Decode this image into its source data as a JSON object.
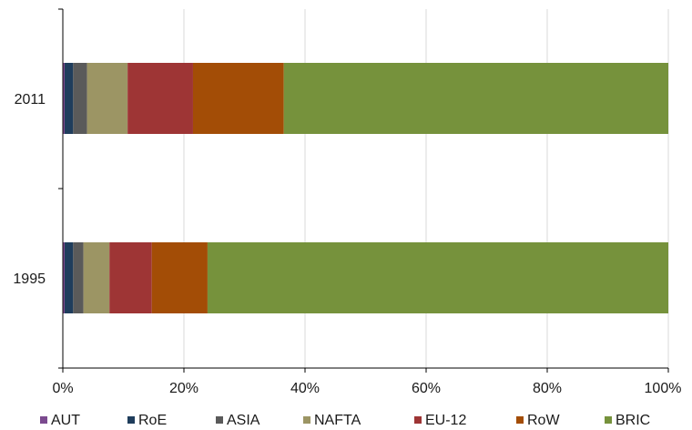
{
  "chart_data": {
    "type": "bar",
    "orientation": "horizontal",
    "stacked": true,
    "categories": [
      "2011",
      "1995"
    ],
    "series": [
      {
        "name": "AUT",
        "color": "#7b4a8f",
        "values": [
          0.3,
          0.3
        ]
      },
      {
        "name": "RoE",
        "color": "#1f3d5c",
        "values": [
          1.4,
          1.4
        ]
      },
      {
        "name": "ASIA",
        "color": "#5a5a5a",
        "values": [
          2.3,
          1.7
        ]
      },
      {
        "name": "NAFTA",
        "color": "#9c9564",
        "values": [
          6.7,
          4.3
        ]
      },
      {
        "name": "EU-12",
        "color": "#9e3535",
        "values": [
          10.8,
          7.0
        ]
      },
      {
        "name": "RoW",
        "color": "#a34d06",
        "values": [
          15.0,
          9.2
        ]
      },
      {
        "name": "BRIC",
        "color": "#76923c",
        "values": [
          63.5,
          76.1
        ]
      }
    ],
    "xlim": [
      0,
      100
    ],
    "xticks": [
      "0%",
      "20%",
      "40%",
      "60%",
      "80%",
      "100%"
    ],
    "grid": "vertical",
    "legend_position": "bottom",
    "title": "",
    "xlabel": "",
    "ylabel": ""
  }
}
